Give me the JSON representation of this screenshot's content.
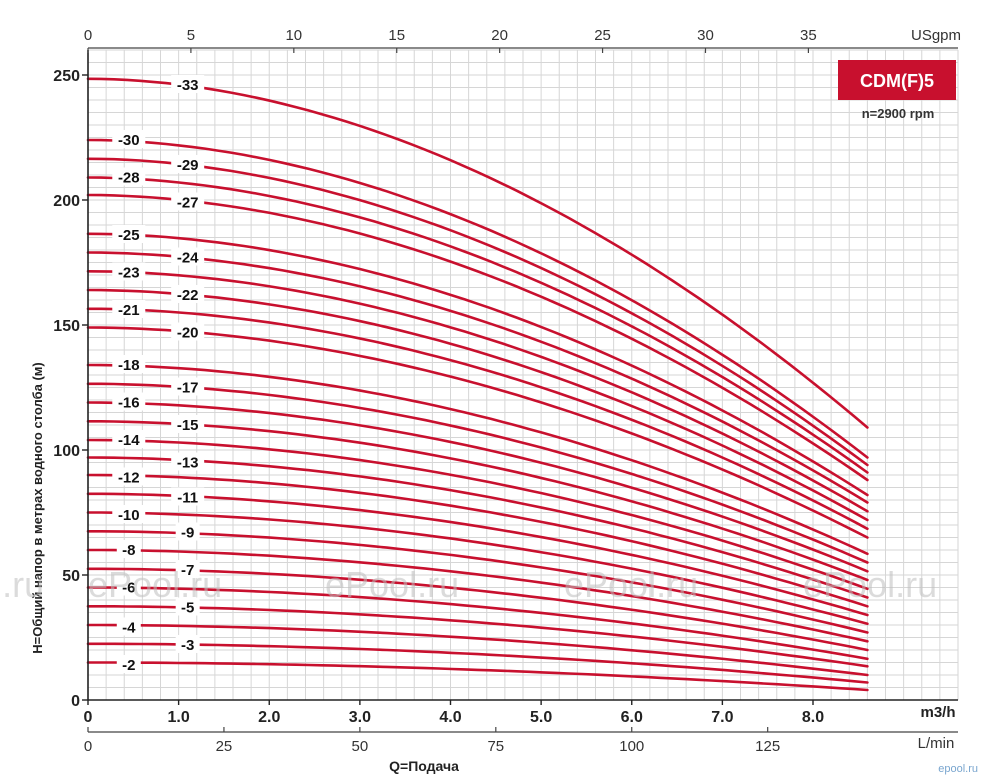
{
  "badge": {
    "model": "CDM(F)5",
    "speed": "n=2900 rpm",
    "color": "#c8102e"
  },
  "watermark": "ePool.ru",
  "corner_mark": "epool.ru",
  "chart_data": {
    "type": "line",
    "ylabel": "H=Общий напор в метрах водного столба (м)",
    "xlabel": "Q=Подача",
    "xlim": [
      0,
      9.6
    ],
    "ylim": [
      0,
      260
    ],
    "y_ticks": [
      "0",
      "50",
      "100",
      "150",
      "200",
      "250"
    ],
    "x_axes": {
      "m3h": {
        "unit": "m3/h",
        "ticks": [
          "0",
          "1.0",
          "2.0",
          "3.0",
          "4.0",
          "5.0",
          "6.0",
          "7.0",
          "8.0"
        ]
      },
      "lmin": {
        "unit": "L/min",
        "ticks": [
          "0",
          "25",
          "50",
          "75",
          "100",
          "125"
        ]
      },
      "usgpm": {
        "unit": "USgpm",
        "ticks": [
          "0",
          "5",
          "10",
          "15",
          "20",
          "25",
          "30",
          "35"
        ]
      }
    },
    "curve_color": "#c8102e",
    "grid": true,
    "q_max": 8.6,
    "series": [
      {
        "name": "-2",
        "shutoff": 15.0,
        "end": 4.0
      },
      {
        "name": "-3",
        "shutoff": 22.5,
        "end": 7.0
      },
      {
        "name": "-4",
        "shutoff": 30.0,
        "end": 10.0
      },
      {
        "name": "-5",
        "shutoff": 37.5,
        "end": 13.5
      },
      {
        "name": "-6",
        "shutoff": 45.0,
        "end": 16.5
      },
      {
        "name": "-7",
        "shutoff": 52.5,
        "end": 20.0
      },
      {
        "name": "-8",
        "shutoff": 60.0,
        "end": 23.5
      },
      {
        "name": "-9",
        "shutoff": 67.5,
        "end": 27.0
      },
      {
        "name": "-10",
        "shutoff": 75.0,
        "end": 30.5
      },
      {
        "name": "-11",
        "shutoff": 82.5,
        "end": 34.0
      },
      {
        "name": "-12",
        "shutoff": 90.0,
        "end": 37.5
      },
      {
        "name": "-13",
        "shutoff": 97.0,
        "end": 41.0
      },
      {
        "name": "-14",
        "shutoff": 104.0,
        "end": 44.5
      },
      {
        "name": "-15",
        "shutoff": 111.5,
        "end": 48.0
      },
      {
        "name": "-16",
        "shutoff": 119.0,
        "end": 51.5
      },
      {
        "name": "-17",
        "shutoff": 126.5,
        "end": 55.0
      },
      {
        "name": "-18",
        "shutoff": 134.0,
        "end": 58.5
      },
      {
        "name": "-20",
        "shutoff": 149.0,
        "end": 65.0
      },
      {
        "name": "-21",
        "shutoff": 156.5,
        "end": 68.5
      },
      {
        "name": "-22",
        "shutoff": 164.0,
        "end": 72.0
      },
      {
        "name": "-23",
        "shutoff": 171.5,
        "end": 75.5
      },
      {
        "name": "-24",
        "shutoff": 179.0,
        "end": 79.0
      },
      {
        "name": "-25",
        "shutoff": 186.5,
        "end": 82.0
      },
      {
        "name": "-27",
        "shutoff": 202.0,
        "end": 88.0
      },
      {
        "name": "-28",
        "shutoff": 209.0,
        "end": 91.0
      },
      {
        "name": "-29",
        "shutoff": 216.5,
        "end": 94.0
      },
      {
        "name": "-30",
        "shutoff": 224.0,
        "end": 97.0
      },
      {
        "name": "-33",
        "shutoff": 248.5,
        "end": 109.0
      }
    ],
    "labels": [
      {
        "text": "-33",
        "x": 1.1,
        "y": 246
      },
      {
        "text": "-30",
        "x": 0.45,
        "y": 224
      },
      {
        "text": "-29",
        "x": 1.1,
        "y": 214
      },
      {
        "text": "-28",
        "x": 0.45,
        "y": 209
      },
      {
        "text": "-27",
        "x": 1.1,
        "y": 199
      },
      {
        "text": "-25",
        "x": 0.45,
        "y": 186
      },
      {
        "text": "-24",
        "x": 1.1,
        "y": 177
      },
      {
        "text": "-23",
        "x": 0.45,
        "y": 171
      },
      {
        "text": "-22",
        "x": 1.1,
        "y": 162
      },
      {
        "text": "-21",
        "x": 0.45,
        "y": 156
      },
      {
        "text": "-20",
        "x": 1.1,
        "y": 147
      },
      {
        "text": "-18",
        "x": 0.45,
        "y": 134
      },
      {
        "text": "-17",
        "x": 1.1,
        "y": 125
      },
      {
        "text": "-16",
        "x": 0.45,
        "y": 119
      },
      {
        "text": "-15",
        "x": 1.1,
        "y": 110
      },
      {
        "text": "-14",
        "x": 0.45,
        "y": 104
      },
      {
        "text": "-13",
        "x": 1.1,
        "y": 95
      },
      {
        "text": "-12",
        "x": 0.45,
        "y": 89
      },
      {
        "text": "-11",
        "x": 1.1,
        "y": 81
      },
      {
        "text": "-10",
        "x": 0.45,
        "y": 74
      },
      {
        "text": "-9",
        "x": 1.1,
        "y": 67
      },
      {
        "text": "-8",
        "x": 0.45,
        "y": 60
      },
      {
        "text": "-7",
        "x": 1.1,
        "y": 52
      },
      {
        "text": "-6",
        "x": 0.45,
        "y": 45
      },
      {
        "text": "-5",
        "x": 1.1,
        "y": 37
      },
      {
        "text": "-4",
        "x": 0.45,
        "y": 29
      },
      {
        "text": "-3",
        "x": 1.1,
        "y": 22
      },
      {
        "text": "-2",
        "x": 0.45,
        "y": 14
      }
    ]
  }
}
